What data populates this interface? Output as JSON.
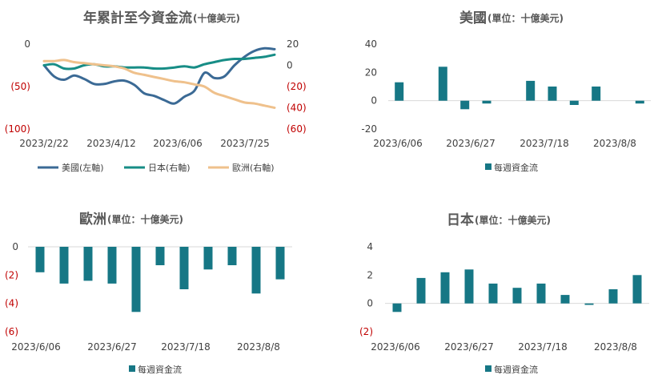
{
  "chart_data": [
    {
      "type": "line",
      "title": "年累計至今資金流",
      "title_suffix": "(十億美元)",
      "x_tick_labels": [
        "2023/2/22",
        "2023/4/12",
        "2023/6/06",
        "2023/7/25"
      ],
      "left_axis": {
        "ylim": [
          -100,
          0
        ],
        "ticks": [
          0,
          -50,
          -100
        ],
        "tick_labels": [
          "0",
          "(50)",
          "(100)"
        ]
      },
      "right_axis": {
        "ylim": [
          -60,
          20
        ],
        "ticks": [
          20,
          0,
          -20,
          -40,
          -60
        ],
        "tick_labels": [
          "20",
          "0",
          "(20)",
          "(40)",
          "(60)"
        ]
      },
      "legend_position": "bottom",
      "series": [
        {
          "name": "美國(左軸)",
          "axis": "left",
          "color": "#3b6a95",
          "values": [
            -25,
            -38,
            -42,
            -37,
            -41,
            -47,
            -47,
            -44,
            -43,
            -48,
            -58,
            -61,
            -66,
            -70,
            -62,
            -55,
            -34,
            -40,
            -38,
            -25,
            -15,
            -8,
            -5,
            -6
          ]
        },
        {
          "name": "日本(右軸)",
          "axis": "right",
          "color": "#178d86",
          "values": [
            0,
            1,
            -3,
            -3,
            0,
            1,
            -1,
            -1,
            -2,
            -2,
            -2,
            -3,
            -3,
            -2,
            -1,
            -2,
            1,
            3,
            5,
            6,
            6,
            7,
            8,
            10
          ]
        },
        {
          "name": "歐洲(右軸)",
          "axis": "right",
          "color": "#efc18c",
          "values": [
            4,
            4,
            5,
            3,
            2,
            1,
            0,
            -1,
            -3,
            -7,
            -9,
            -11,
            -13,
            -15,
            -16,
            -18,
            -20,
            -26,
            -29,
            -32,
            -35,
            -36,
            -38,
            -40
          ]
        }
      ]
    },
    {
      "type": "bar",
      "title": "美國",
      "title_suffix": "(單位：十億美元)",
      "ylim": [
        -20,
        40
      ],
      "y_ticks": [
        40,
        20,
        0,
        -20
      ],
      "y_tick_labels": [
        "40",
        "20",
        "0",
        "-20"
      ],
      "x_tick_labels": [
        "2023/6/06",
        "2023/6/27",
        "2023/7/18",
        "2023/8/8"
      ],
      "legend": "每週資金流",
      "color": "#167785",
      "values": [
        13,
        null,
        24,
        -6,
        -2,
        null,
        14,
        10,
        -3,
        10,
        null,
        -2
      ]
    },
    {
      "type": "bar",
      "title": "歐洲",
      "title_suffix": "(單位：十億美元)",
      "ylim": [
        -6,
        0
      ],
      "y_ticks": [
        0,
        -2,
        -4,
        -6
      ],
      "y_tick_labels": [
        "0",
        "(2)",
        "(4)",
        "(6)"
      ],
      "x_tick_labels": [
        "2023/6/06",
        "2023/6/27",
        "2023/7/18",
        "2023/8/8"
      ],
      "legend": "每週資金流",
      "color": "#167785",
      "values": [
        -1.8,
        -2.6,
        -2.4,
        -2.6,
        -4.6,
        -1.3,
        -3.0,
        -1.6,
        -1.3,
        -3.3,
        -2.3
      ]
    },
    {
      "type": "bar",
      "title": "日本",
      "title_suffix": "(單位：十億美元)",
      "ylim": [
        -2,
        4
      ],
      "y_ticks": [
        4,
        2,
        0,
        -2
      ],
      "y_tick_labels": [
        "4",
        "2",
        "0",
        "(2)"
      ],
      "x_tick_labels": [
        "2023/6/06",
        "2023/6/27",
        "2023/7/18",
        "2023/8/8"
      ],
      "legend": "每週資金流",
      "color": "#167785",
      "values": [
        -0.6,
        1.8,
        2.2,
        2.4,
        1.4,
        1.1,
        1.4,
        0.6,
        -0.1,
        1.0,
        2.0
      ]
    }
  ]
}
